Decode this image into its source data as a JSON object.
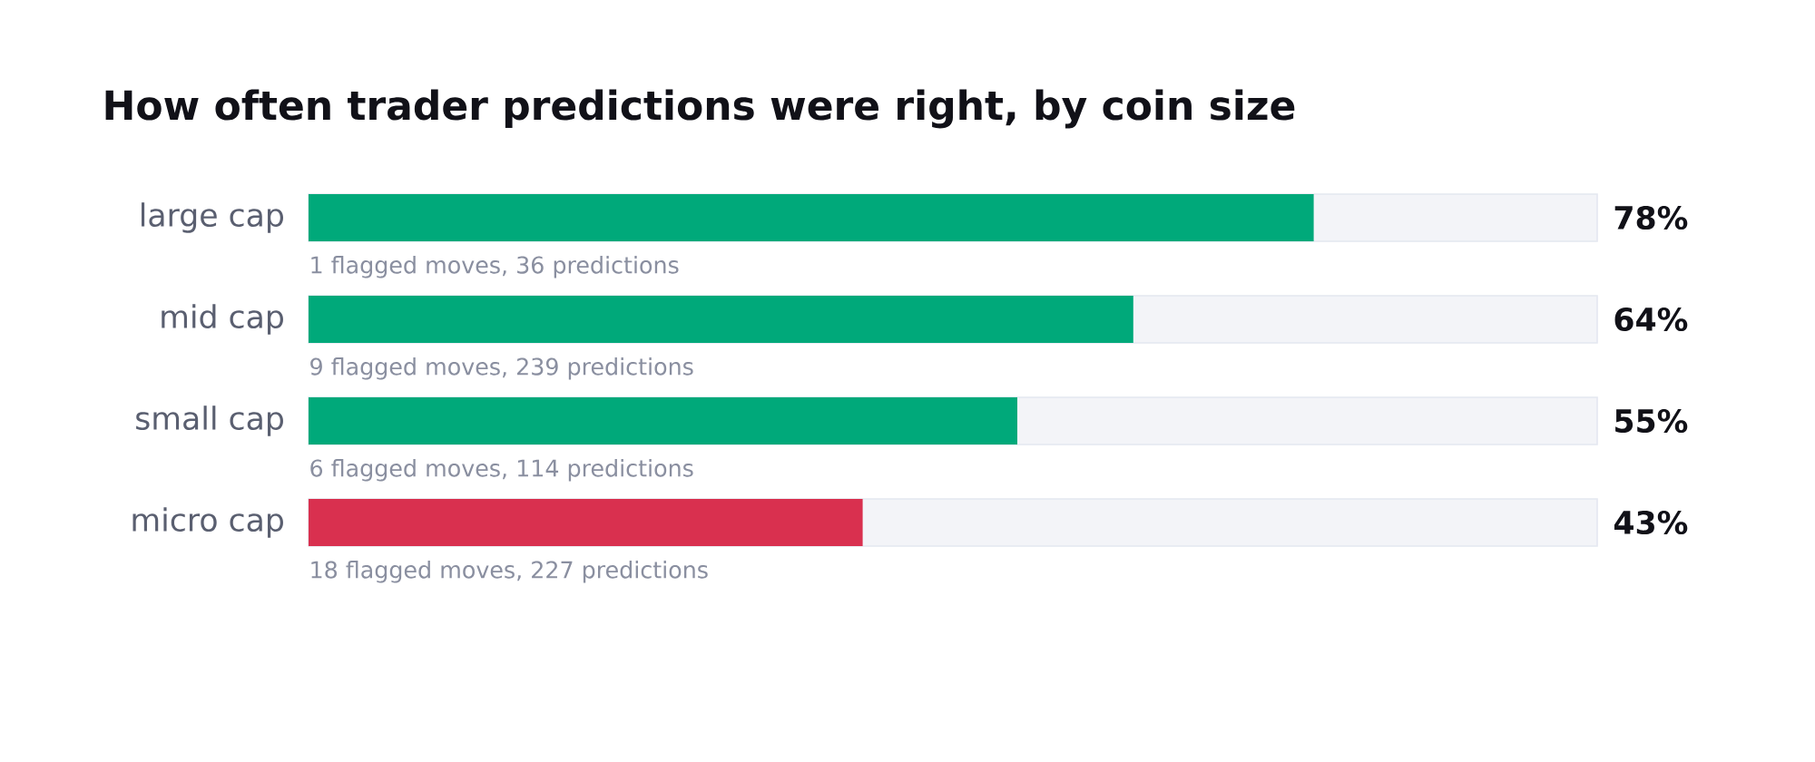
{
  "chart_data": {
    "type": "bar",
    "orientation": "horizontal",
    "title": "How often trader predictions were right, by coin size",
    "categories": [
      "large cap",
      "mid cap",
      "small cap",
      "micro cap"
    ],
    "values": [
      78,
      64,
      55,
      43
    ],
    "colors": [
      "#00a97a",
      "#00a97a",
      "#00a97a",
      "#d9304f"
    ],
    "xlim": [
      0,
      100
    ],
    "value_labels": [
      "78%",
      "64%",
      "55%",
      "43%"
    ],
    "tick_labels": "y",
    "annotations": [
      "1 flagged moves, 36 predictions",
      "9 flagged moves, 239 predictions",
      "6 flagged moves, 114 predictions",
      "18 flagged moves, 227 predictions"
    ]
  }
}
